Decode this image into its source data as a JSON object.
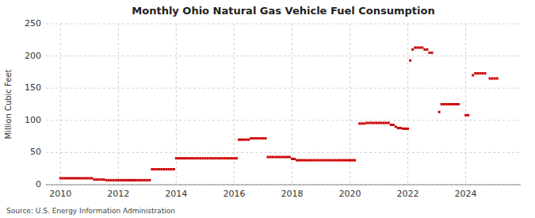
{
  "chart_data": {
    "type": "scatter",
    "title": "Monthly Ohio Natural Gas Vehicle Fuel Consumption",
    "ylabel": "Million Cubic Feet",
    "source": "Source: U.S. Energy Information Administration",
    "color": "#cc0000",
    "marker": "square",
    "grid": true,
    "xlim": [
      2009.5,
      2025.9
    ],
    "ylim": [
      0,
      250
    ],
    "xticks": [
      2010,
      2012,
      2014,
      2016,
      2018,
      2020,
      2022,
      2024
    ],
    "yticks": [
      0,
      50,
      100,
      150,
      200,
      250
    ],
    "x": [
      2010.0,
      2010.083,
      2010.167,
      2010.25,
      2010.333,
      2010.417,
      2010.5,
      2010.583,
      2010.667,
      2010.75,
      2010.833,
      2010.917,
      2011.0,
      2011.083,
      2011.167,
      2011.25,
      2011.333,
      2011.417,
      2011.5,
      2011.583,
      2011.667,
      2011.75,
      2011.833,
      2011.917,
      2012.0,
      2012.083,
      2012.167,
      2012.25,
      2012.333,
      2012.417,
      2012.5,
      2012.583,
      2012.667,
      2012.75,
      2012.833,
      2012.917,
      2013.0,
      2013.083,
      2013.167,
      2013.25,
      2013.333,
      2013.417,
      2013.5,
      2013.583,
      2013.667,
      2013.75,
      2013.833,
      2013.917,
      2014.0,
      2014.083,
      2014.167,
      2014.25,
      2014.333,
      2014.417,
      2014.5,
      2014.583,
      2014.667,
      2014.75,
      2014.833,
      2014.917,
      2015.0,
      2015.083,
      2015.167,
      2015.25,
      2015.333,
      2015.417,
      2015.5,
      2015.583,
      2015.667,
      2015.75,
      2015.833,
      2015.917,
      2016.0,
      2016.083,
      2016.167,
      2016.25,
      2016.333,
      2016.417,
      2016.5,
      2016.583,
      2016.667,
      2016.75,
      2016.833,
      2016.917,
      2017.0,
      2017.083,
      2017.167,
      2017.25,
      2017.333,
      2017.417,
      2017.5,
      2017.583,
      2017.667,
      2017.75,
      2017.833,
      2017.917,
      2018.0,
      2018.083,
      2018.167,
      2018.25,
      2018.333,
      2018.417,
      2018.5,
      2018.583,
      2018.667,
      2018.75,
      2018.833,
      2018.917,
      2019.0,
      2019.083,
      2019.167,
      2019.25,
      2019.333,
      2019.417,
      2019.5,
      2019.583,
      2019.667,
      2019.75,
      2019.833,
      2019.917,
      2020.0,
      2020.083,
      2020.167,
      2020.333,
      2020.417,
      2020.5,
      2020.583,
      2020.667,
      2020.75,
      2020.833,
      2020.917,
      2021.0,
      2021.083,
      2021.167,
      2021.25,
      2021.333,
      2021.417,
      2021.5,
      2021.583,
      2021.667,
      2021.75,
      2021.833,
      2021.917,
      2022.0,
      2022.083,
      2022.167,
      2022.25,
      2022.333,
      2022.417,
      2022.5,
      2022.583,
      2022.667,
      2022.75,
      2022.833,
      2023.083,
      2023.167,
      2023.25,
      2023.333,
      2023.417,
      2023.5,
      2023.583,
      2023.667,
      2023.75,
      2024.0,
      2024.083,
      2024.25,
      2024.333,
      2024.417,
      2024.5,
      2024.583,
      2024.667,
      2024.833,
      2024.917,
      2025.0,
      2025.083
    ],
    "values": [
      10,
      10,
      10,
      10,
      10,
      10,
      10,
      10,
      10,
      10,
      10,
      10,
      10,
      10,
      8,
      8,
      8,
      8,
      8,
      7,
      7,
      7,
      7,
      7,
      7,
      7,
      7,
      7,
      7,
      7,
      7,
      7,
      7,
      7,
      7,
      7,
      7,
      7,
      24,
      24,
      24,
      24,
      24,
      24,
      24,
      24,
      24,
      24,
      41,
      41,
      41,
      41,
      41,
      41,
      41,
      41,
      41,
      41,
      41,
      41,
      41,
      41,
      41,
      41,
      41,
      41,
      41,
      41,
      41,
      41,
      41,
      41,
      41,
      41,
      70,
      70,
      70,
      70,
      70,
      72,
      72,
      72,
      72,
      72,
      72,
      72,
      43,
      43,
      43,
      43,
      43,
      43,
      43,
      43,
      43,
      43,
      40,
      40,
      38,
      38,
      38,
      38,
      38,
      38,
      38,
      38,
      38,
      38,
      38,
      38,
      38,
      38,
      38,
      38,
      38,
      38,
      38,
      38,
      38,
      38,
      38,
      38,
      38,
      95,
      95,
      95,
      96,
      96,
      96,
      96,
      96,
      96,
      96,
      96,
      96,
      96,
      93,
      93,
      90,
      88,
      88,
      87,
      87,
      87,
      193,
      210,
      213,
      213,
      213,
      213,
      210,
      210,
      205,
      205,
      113,
      125,
      125,
      125,
      125,
      125,
      125,
      125,
      125,
      108,
      108,
      170,
      173,
      173,
      173,
      173,
      173,
      165,
      165,
      165,
      165
    ]
  }
}
